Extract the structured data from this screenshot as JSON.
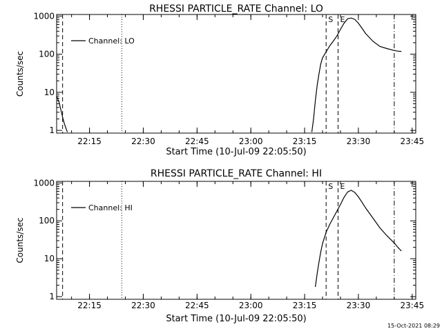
{
  "timestamp": "15-Oct-2021 08:29",
  "chart_data": [
    {
      "type": "line",
      "title": "RHESSI PARTICLE_RATE Channel: LO",
      "xlabel": "Start Time (10-Jul-09 22:05:50)",
      "ylabel": "Counts/sec",
      "yscale": "log",
      "xlim": [
        "22:05:50",
        "23:46:00"
      ],
      "ylim": [
        0.85,
        1100
      ],
      "x_ticks": [
        "22:15",
        "22:30",
        "22:45",
        "23:00",
        "23:15",
        "23:30",
        "23:45"
      ],
      "y_ticks": [
        "1",
        "10",
        "100",
        "1000"
      ],
      "legend": {
        "label": "Channel: LO",
        "position": "top-left"
      },
      "series": [
        {
          "name": "Channel: LO",
          "segments": [
            {
              "x": [
                "22:05:50",
                "22:06:30",
                "22:07:00",
                "22:07:30",
                "22:08:00",
                "22:08:30",
                "22:08:50"
              ],
              "y": [
                8,
                5.5,
                3.5,
                2.2,
                1.5,
                1.1,
                0.9
              ]
            },
            {
              "x": [
                "23:17:00",
                "23:17:30",
                "23:18:00",
                "23:18:30",
                "23:19:00",
                "23:19:30",
                "23:20:00",
                "23:21:00",
                "23:22:00",
                "23:23:00",
                "23:24:00",
                "23:25:00",
                "23:26:00",
                "23:27:00",
                "23:28:00",
                "23:29:00",
                "23:30:00",
                "23:31:00",
                "23:32:00",
                "23:34:00",
                "23:36:00",
                "23:38:00",
                "23:40:00",
                "23:41:00",
                "23:42:00"
              ],
              "y": [
                0.9,
                2,
                6,
                15,
                30,
                55,
                80,
                115,
                165,
                220,
                300,
                450,
                650,
                850,
                890,
                820,
                650,
                480,
                350,
                220,
                160,
                140,
                125,
                120,
                118
              ]
            }
          ]
        }
      ],
      "vlines": [
        {
          "x": "22:07:30",
          "style": "dashed"
        },
        {
          "x": "22:24:00",
          "style": "dotted"
        },
        {
          "x": "23:21:00",
          "style": "dashed",
          "label": "S"
        },
        {
          "x": "23:24:20",
          "style": "dashed",
          "label": "E"
        },
        {
          "x": "23:40:00",
          "style": "dash-dot"
        }
      ]
    },
    {
      "type": "line",
      "title": "RHESSI PARTICLE_RATE Channel: HI",
      "xlabel": "Start Time (10-Jul-09 22:05:50)",
      "ylabel": "Counts/sec",
      "yscale": "log",
      "xlim": [
        "22:05:50",
        "23:46:00"
      ],
      "ylim": [
        0.85,
        1100
      ],
      "x_ticks": [
        "22:15",
        "22:30",
        "22:45",
        "23:00",
        "23:15",
        "23:30",
        "23:45"
      ],
      "y_ticks": [
        "1",
        "10",
        "100",
        "1000"
      ],
      "legend": {
        "label": "Channel: HI",
        "position": "top-left"
      },
      "series": [
        {
          "name": "Channel: HI",
          "segments": [
            {
              "x": [
                "23:18:00",
                "23:18:30",
                "23:19:00",
                "23:19:30",
                "23:20:00",
                "23:21:00",
                "23:22:00",
                "23:23:00",
                "23:24:00",
                "23:25:00",
                "23:26:00",
                "23:27:00",
                "23:28:00",
                "23:29:00",
                "23:30:00",
                "23:31:00",
                "23:32:00",
                "23:34:00",
                "23:36:00",
                "23:38:00",
                "23:40:00",
                "23:41:00",
                "23:42:00"
              ],
              "y": [
                1.8,
                4,
                8,
                15,
                25,
                50,
                80,
                120,
                180,
                270,
                420,
                580,
                640,
                560,
                430,
                310,
                220,
                120,
                65,
                40,
                26,
                20,
                16
              ]
            }
          ]
        }
      ],
      "vlines": [
        {
          "x": "22:07:30",
          "style": "dashed"
        },
        {
          "x": "22:24:00",
          "style": "dotted"
        },
        {
          "x": "23:21:00",
          "style": "dashed",
          "label": "S"
        },
        {
          "x": "23:24:20",
          "style": "dashed",
          "label": "E"
        },
        {
          "x": "23:40:00",
          "style": "dash-dot"
        }
      ]
    }
  ]
}
